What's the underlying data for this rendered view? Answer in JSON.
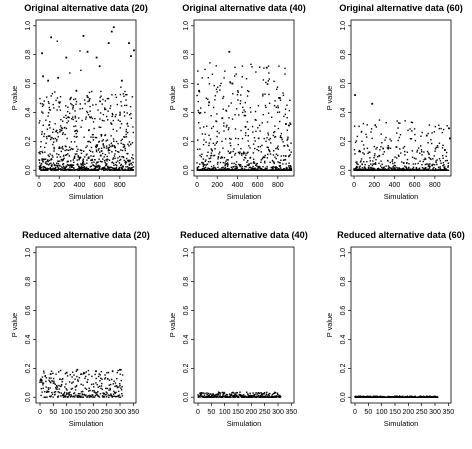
{
  "chart_data": [
    {
      "type": "scatter",
      "title": "Original alternative data (20)",
      "xlabel": "Simulation",
      "ylabel": "P value",
      "xlim": [
        -30,
        960
      ],
      "ylim": [
        -0.04,
        1.04
      ],
      "xticks": [
        0,
        200,
        400,
        600,
        800
      ],
      "yticks": [
        0.0,
        0.2,
        0.4,
        0.6,
        0.8,
        1.0
      ],
      "ytick_labels": [
        "0.0",
        "0.2",
        "0.4",
        "0.6",
        "0.8",
        "1.0"
      ],
      "grid": false,
      "n_points": 940,
      "point_distribution": "dense near 0, long spread to 1.0",
      "example_points": [
        [
          30,
          0.81
        ],
        [
          40,
          0.65
        ],
        [
          90,
          0.62
        ],
        [
          120,
          0.92
        ],
        [
          190,
          0.64
        ],
        [
          270,
          0.78
        ],
        [
          370,
          0.55
        ],
        [
          440,
          0.93
        ],
        [
          480,
          0.82
        ],
        [
          570,
          0.78
        ],
        [
          600,
          0.72
        ],
        [
          690,
          0.88
        ],
        [
          720,
          0.96
        ],
        [
          740,
          0.99
        ],
        [
          820,
          0.62
        ],
        [
          890,
          0.88
        ],
        [
          910,
          0.79
        ],
        [
          940,
          0.83
        ]
      ]
    },
    {
      "type": "scatter",
      "title": "Original alternative data (40)",
      "xlabel": "Simulation",
      "ylabel": "P value",
      "xlim": [
        -30,
        960
      ],
      "ylim": [
        -0.04,
        1.04
      ],
      "xticks": [
        0,
        200,
        400,
        600,
        800
      ],
      "yticks": [
        0.0,
        0.2,
        0.4,
        0.6,
        0.8,
        1.0
      ],
      "ytick_labels": [
        "0.0",
        "0.2",
        "0.4",
        "0.6",
        "0.8",
        "1.0"
      ],
      "grid": false,
      "n_points": 940,
      "point_distribution": "mostly below 0.1, sparse up to 0.8",
      "example_points": [
        [
          20,
          0.55
        ],
        [
          120,
          0.47
        ],
        [
          250,
          0.36
        ],
        [
          320,
          0.82
        ],
        [
          350,
          0.6
        ],
        [
          480,
          0.3
        ],
        [
          690,
          0.71
        ],
        [
          820,
          0.5
        ],
        [
          880,
          0.32
        ],
        [
          910,
          0.31
        ]
      ]
    },
    {
      "type": "scatter",
      "title": "Original alternative data (60)",
      "xlabel": "Simulation",
      "ylabel": "P value",
      "xlim": [
        -30,
        960
      ],
      "ylim": [
        -0.04,
        1.04
      ],
      "xticks": [
        0,
        200,
        400,
        600,
        800
      ],
      "yticks": [
        0.0,
        0.2,
        0.4,
        0.6,
        0.8,
        1.0
      ],
      "ytick_labels": [
        "0.0",
        "0.2",
        "0.4",
        "0.6",
        "0.8",
        "1.0"
      ],
      "grid": false,
      "n_points": 940,
      "point_distribution": "almost all near 0, few outliers",
      "example_points": [
        [
          10,
          0.52
        ],
        [
          180,
          0.46
        ],
        [
          250,
          0.1
        ],
        [
          420,
          0.16
        ],
        [
          720,
          0.24
        ],
        [
          900,
          0.14
        ],
        [
          940,
          0.29
        ],
        [
          950,
          0.22
        ]
      ]
    },
    {
      "type": "scatter",
      "title": "Reduced alternative data (20)",
      "xlabel": "Simulation",
      "ylabel": "P value",
      "xlim": [
        -15,
        360
      ],
      "ylim": [
        -0.04,
        1.04
      ],
      "xticks": [
        0,
        50,
        100,
        150,
        200,
        250,
        300,
        350
      ],
      "yticks": [
        0.0,
        0.2,
        0.4,
        0.6,
        0.8,
        1.0
      ],
      "ytick_labels": [
        "0.0",
        "0.2",
        "0.4",
        "0.6",
        "0.8",
        "1.0"
      ],
      "grid": false,
      "n_points": 310,
      "point_distribution": "spread from 0 to about 0.2",
      "example_points": [
        [
          5,
          0.12
        ],
        [
          40,
          0.16
        ],
        [
          100,
          0.17
        ],
        [
          140,
          0.19
        ],
        [
          210,
          0.18
        ],
        [
          300,
          0.19
        ]
      ]
    },
    {
      "type": "scatter",
      "title": "Reduced alternative data (40)",
      "xlabel": "Simulation",
      "ylabel": "P value",
      "xlim": [
        -15,
        360
      ],
      "ylim": [
        -0.04,
        1.04
      ],
      "xticks": [
        0,
        50,
        100,
        150,
        200,
        250,
        300,
        350
      ],
      "yticks": [
        0.0,
        0.2,
        0.4,
        0.6,
        0.8,
        1.0
      ],
      "ytick_labels": [
        "0.0",
        "0.2",
        "0.4",
        "0.6",
        "0.8",
        "1.0"
      ],
      "grid": false,
      "n_points": 310,
      "point_distribution": "tight band below 0.04"
    },
    {
      "type": "scatter",
      "title": "Reduced alternative data (60)",
      "xlabel": "Simulation",
      "ylabel": "P value",
      "xlim": [
        -15,
        360
      ],
      "ylim": [
        -0.04,
        1.04
      ],
      "xticks": [
        0,
        50,
        100,
        150,
        200,
        250,
        300,
        350
      ],
      "yticks": [
        0.0,
        0.2,
        0.4,
        0.6,
        0.8,
        1.0
      ],
      "ytick_labels": [
        "0.0",
        "0.2",
        "0.4",
        "0.6",
        "0.8",
        "1.0"
      ],
      "grid": false,
      "n_points": 310,
      "point_distribution": "essentially all at 0"
    }
  ]
}
